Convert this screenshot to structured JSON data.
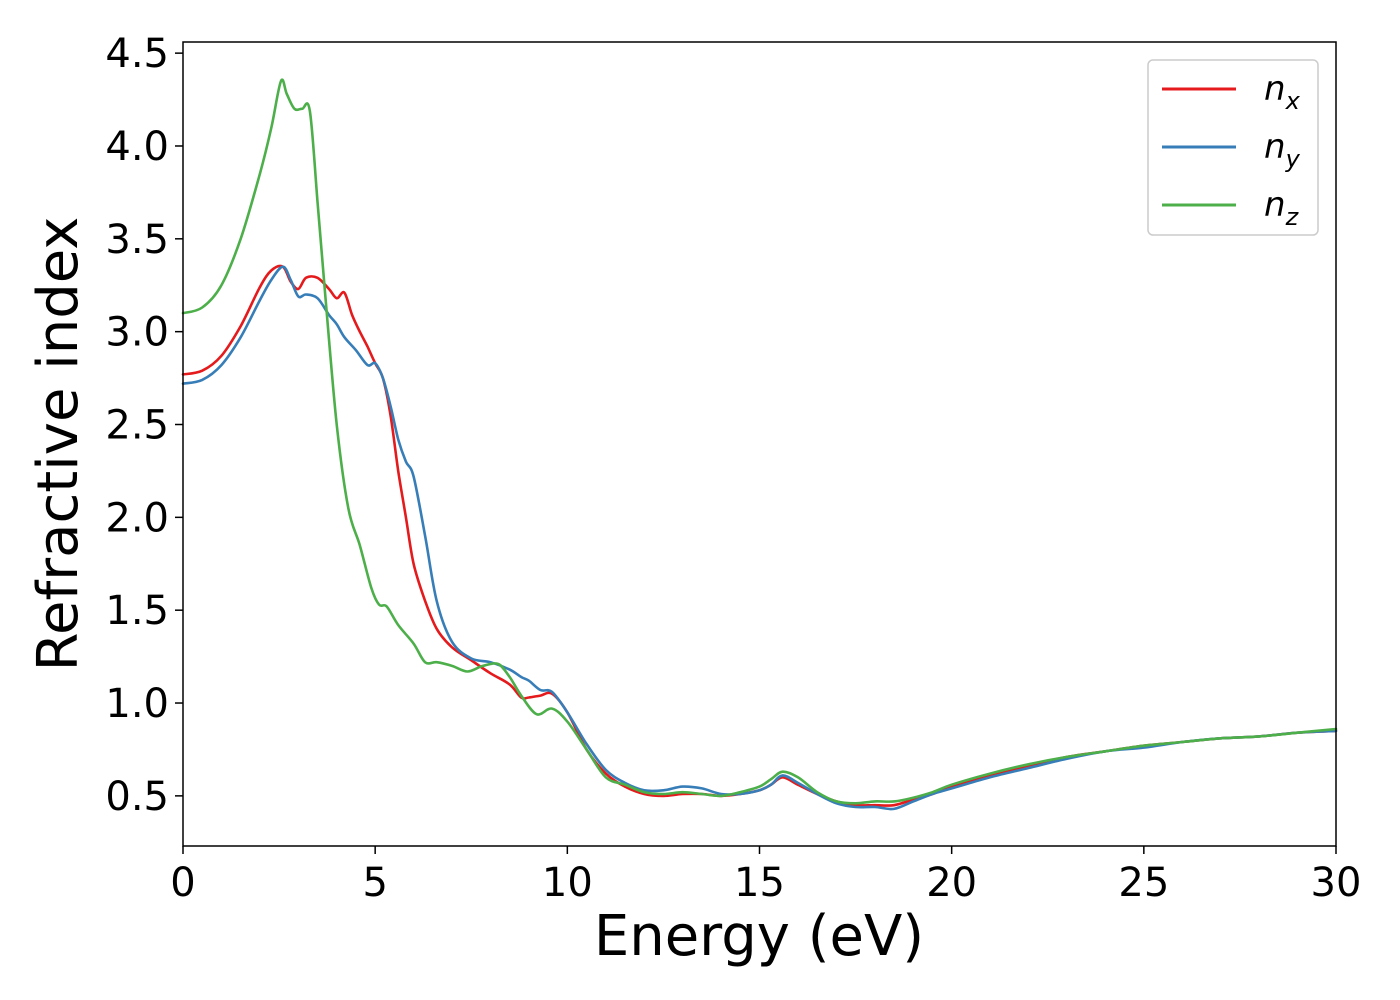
{
  "chart_data": {
    "type": "line",
    "title": "",
    "xlabel": "Energy (eV)",
    "ylabel": "Refractive index",
    "xlim": [
      0,
      30
    ],
    "ylim": [
      0.23,
      4.56
    ],
    "xticks": [
      0,
      5,
      10,
      15,
      20,
      25,
      30
    ],
    "yticks": [
      0.5,
      1.0,
      1.5,
      2.0,
      2.5,
      3.0,
      3.5,
      4.0,
      4.5
    ],
    "xtick_labels": [
      "0",
      "5",
      "10",
      "15",
      "20",
      "25",
      "30"
    ],
    "ytick_labels": [
      "0.5",
      "1.0",
      "1.5",
      "2.0",
      "2.5",
      "3.0",
      "3.5",
      "4.0",
      "4.5"
    ],
    "grid": false,
    "legend_position": "top-right",
    "series": [
      {
        "name": "n_x",
        "label_main": "n",
        "label_sub": "x",
        "color": "#e41a1c",
        "x": [
          0,
          0.5,
          1.0,
          1.5,
          2.0,
          2.3,
          2.6,
          2.8,
          3.0,
          3.2,
          3.5,
          3.8,
          4.0,
          4.2,
          4.4,
          4.6,
          4.8,
          5.0,
          5.2,
          5.4,
          5.6,
          5.8,
          6.0,
          6.3,
          6.6,
          7.0,
          7.5,
          8.0,
          8.5,
          8.8,
          9.0,
          9.3,
          9.6,
          10.0,
          10.5,
          11.0,
          11.5,
          12.0,
          12.5,
          13.0,
          13.5,
          14.0,
          14.5,
          15.0,
          15.3,
          15.6,
          16.0,
          16.5,
          17.0,
          17.5,
          18.0,
          18.5,
          19.0,
          19.5,
          20.0,
          21.0,
          22.0,
          23.0,
          24.0,
          25.0,
          26.0,
          27.0,
          28.0,
          29.0,
          30.0
        ],
        "y": [
          2.77,
          2.79,
          2.87,
          3.03,
          3.24,
          3.33,
          3.35,
          3.27,
          3.23,
          3.29,
          3.29,
          3.23,
          3.18,
          3.21,
          3.09,
          3.0,
          2.92,
          2.83,
          2.75,
          2.55,
          2.25,
          2.0,
          1.75,
          1.55,
          1.4,
          1.3,
          1.23,
          1.16,
          1.1,
          1.03,
          1.03,
          1.04,
          1.05,
          0.95,
          0.75,
          0.62,
          0.55,
          0.51,
          0.5,
          0.51,
          0.51,
          0.5,
          0.51,
          0.53,
          0.56,
          0.6,
          0.56,
          0.51,
          0.47,
          0.45,
          0.45,
          0.45,
          0.48,
          0.51,
          0.55,
          0.61,
          0.66,
          0.71,
          0.74,
          0.77,
          0.79,
          0.81,
          0.82,
          0.84,
          0.85
        ]
      },
      {
        "name": "n_y",
        "label_main": "n",
        "label_sub": "y",
        "color": "#377eb8",
        "x": [
          0,
          0.5,
          1.0,
          1.5,
          2.0,
          2.3,
          2.6,
          2.8,
          3.0,
          3.2,
          3.5,
          3.8,
          4.0,
          4.2,
          4.5,
          4.8,
          5.0,
          5.2,
          5.4,
          5.6,
          5.8,
          6.0,
          6.3,
          6.6,
          7.0,
          7.5,
          8.0,
          8.5,
          8.8,
          9.0,
          9.3,
          9.6,
          10.0,
          10.5,
          11.0,
          11.5,
          12.0,
          12.5,
          13.0,
          13.5,
          14.0,
          14.5,
          15.0,
          15.3,
          15.6,
          16.0,
          16.5,
          17.0,
          17.5,
          18.0,
          18.5,
          19.0,
          19.5,
          20.0,
          21.0,
          22.0,
          23.0,
          24.0,
          25.0,
          26.0,
          27.0,
          28.0,
          29.0,
          30.0
        ],
        "y": [
          2.72,
          2.74,
          2.82,
          2.97,
          3.17,
          3.28,
          3.35,
          3.28,
          3.19,
          3.2,
          3.18,
          3.09,
          3.04,
          2.97,
          2.9,
          2.82,
          2.83,
          2.75,
          2.6,
          2.42,
          2.3,
          2.22,
          1.9,
          1.55,
          1.33,
          1.24,
          1.22,
          1.18,
          1.14,
          1.12,
          1.07,
          1.06,
          0.95,
          0.78,
          0.64,
          0.57,
          0.53,
          0.53,
          0.55,
          0.54,
          0.51,
          0.51,
          0.53,
          0.56,
          0.61,
          0.57,
          0.51,
          0.46,
          0.44,
          0.44,
          0.43,
          0.47,
          0.51,
          0.54,
          0.6,
          0.65,
          0.7,
          0.74,
          0.76,
          0.79,
          0.81,
          0.82,
          0.84,
          0.85
        ]
      },
      {
        "name": "n_z",
        "label_main": "n",
        "label_sub": "z",
        "color": "#4daf4a",
        "x": [
          0,
          0.5,
          1.0,
          1.5,
          2.0,
          2.3,
          2.55,
          2.7,
          2.9,
          3.1,
          3.3,
          3.5,
          3.7,
          4.0,
          4.3,
          4.6,
          4.9,
          5.1,
          5.3,
          5.6,
          6.0,
          6.3,
          6.6,
          7.0,
          7.4,
          7.8,
          8.2,
          8.5,
          8.8,
          9.2,
          9.6,
          10.0,
          10.5,
          11.0,
          11.5,
          12.0,
          12.5,
          13.0,
          13.5,
          14.0,
          14.5,
          15.0,
          15.3,
          15.6,
          16.0,
          16.5,
          17.0,
          17.5,
          18.0,
          18.5,
          19.0,
          19.5,
          20.0,
          21.0,
          22.0,
          23.0,
          24.0,
          25.0,
          26.0,
          27.0,
          28.0,
          29.0,
          30.0
        ],
        "y": [
          3.1,
          3.13,
          3.25,
          3.5,
          3.85,
          4.1,
          4.35,
          4.28,
          4.2,
          4.2,
          4.19,
          3.7,
          3.2,
          2.5,
          2.05,
          1.85,
          1.62,
          1.53,
          1.52,
          1.42,
          1.32,
          1.22,
          1.22,
          1.2,
          1.17,
          1.2,
          1.21,
          1.14,
          1.04,
          0.94,
          0.97,
          0.9,
          0.75,
          0.6,
          0.56,
          0.52,
          0.51,
          0.52,
          0.51,
          0.5,
          0.52,
          0.55,
          0.59,
          0.63,
          0.6,
          0.52,
          0.47,
          0.46,
          0.47,
          0.47,
          0.49,
          0.52,
          0.56,
          0.62,
          0.67,
          0.71,
          0.74,
          0.77,
          0.79,
          0.81,
          0.82,
          0.84,
          0.86
        ]
      }
    ]
  }
}
